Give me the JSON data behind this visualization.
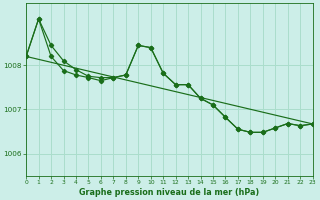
{
  "title": "Graphe pression niveau de la mer (hPa)",
  "bg_color": "#cceee8",
  "grid_color": "#aaddcc",
  "line_color": "#1a6e1a",
  "xlim": [
    0,
    23
  ],
  "ylim": [
    1005.5,
    1009.4
  ],
  "yticks": [
    1006,
    1007,
    1008
  ],
  "xticks": [
    0,
    1,
    2,
    3,
    4,
    5,
    6,
    7,
    8,
    9,
    10,
    11,
    12,
    13,
    14,
    15,
    16,
    17,
    18,
    19,
    20,
    21,
    22,
    23
  ],
  "series1_y": [
    1008.2,
    1009.05,
    1008.45,
    1008.1,
    1007.9,
    1007.75,
    1007.72,
    1007.72,
    1007.78,
    1008.45,
    1008.4,
    1007.82,
    1007.56,
    1007.56,
    1007.25,
    1007.1,
    1006.82,
    1006.55,
    1006.48,
    1006.48,
    1006.58,
    1006.68,
    1006.63,
    1006.67
  ],
  "series2_y": [
    1008.2,
    1009.05,
    1008.2,
    1007.88,
    1007.78,
    1007.72,
    1007.65,
    1007.72,
    1007.78,
    1008.45,
    1008.4,
    1007.82,
    1007.56,
    1007.56,
    1007.25,
    1007.1,
    1006.82,
    1006.55,
    1006.48,
    1006.48,
    1006.58,
    1006.68,
    1006.63,
    1006.67
  ],
  "trend_x": [
    0,
    23
  ],
  "trend_y": [
    1008.2,
    1006.67
  ]
}
